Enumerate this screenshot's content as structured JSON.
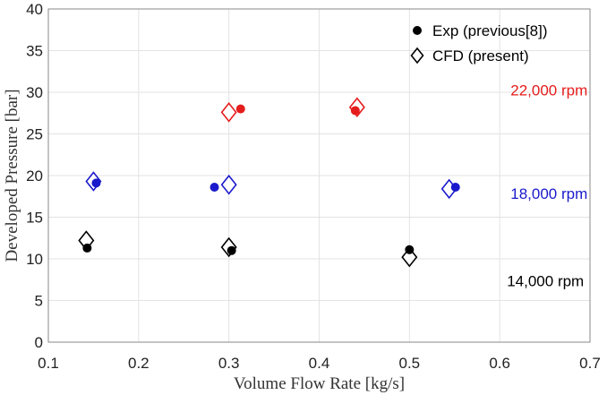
{
  "chart_data": {
    "type": "scatter",
    "title": "",
    "xlabel": "Volume Flow Rate [kg/s]",
    "ylabel": "Developed Pressure [bar]",
    "xlim": [
      0.1,
      0.7
    ],
    "ylim": [
      0,
      40
    ],
    "xticks": [
      "0.1",
      "0.2",
      "0.3",
      "0.4",
      "0.5",
      "0.6",
      "0.7"
    ],
    "yticks": [
      "0",
      "5",
      "10",
      "15",
      "20",
      "25",
      "30",
      "35",
      "40"
    ],
    "grid": true,
    "legend_position": "top-right",
    "legend": [
      {
        "label": "Exp (previous[8])",
        "marker": "filled-circle"
      },
      {
        "label": "CFD (present)",
        "marker": "open-diamond"
      }
    ],
    "series": [
      {
        "speed_label": "14,000 rpm",
        "color": "#000000",
        "exp": {
          "x": [
            0.143,
            0.303,
            0.5
          ],
          "y": [
            11.3,
            11.0,
            11.1
          ]
        },
        "cfd": {
          "x": [
            0.142,
            0.3,
            0.5
          ],
          "y": [
            12.2,
            11.4,
            10.2
          ]
        }
      },
      {
        "speed_label": "18,000 rpm",
        "color": "#1a1acc",
        "exp": {
          "x": [
            0.153,
            0.284,
            0.551
          ],
          "y": [
            19.1,
            18.6,
            18.6
          ]
        },
        "cfd": {
          "x": [
            0.15,
            0.3,
            0.544
          ],
          "y": [
            19.3,
            18.9,
            18.4
          ]
        }
      },
      {
        "speed_label": "22,000 rpm",
        "color": "#e51c1c",
        "exp": {
          "x": [
            0.313,
            0.44
          ],
          "y": [
            28.0,
            27.8
          ]
        },
        "cfd": {
          "x": [
            0.3,
            0.442
          ],
          "y": [
            27.6,
            28.2
          ]
        }
      }
    ],
    "annotations": [
      {
        "text": "22,000 rpm",
        "x": 0.612,
        "y": 29.6,
        "color": "#e51c1c"
      },
      {
        "text": "18,000 rpm",
        "x": 0.612,
        "y": 17.2,
        "color": "#1a1acc"
      },
      {
        "text": "14,000 rpm",
        "x": 0.608,
        "y": 6.7,
        "color": "#000000"
      }
    ]
  }
}
